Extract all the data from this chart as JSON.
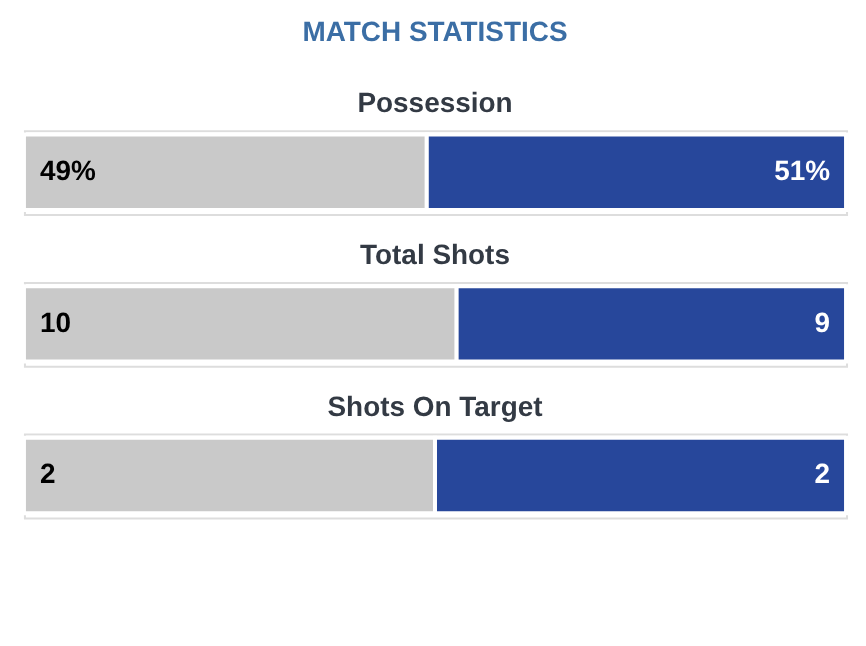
{
  "chart_data": [
    {
      "type": "bar",
      "orientation": "horizontal",
      "stacked": true,
      "title": "MATCH STATISTICS",
      "subtitle": "Possession",
      "categories": [
        null
      ],
      "series": [
        {
          "color": "#c9c9c9",
          "values": [
            49
          ],
          "value_labels": [
            "49%"
          ]
        },
        {
          "color": "#27479b",
          "values": [
            51
          ],
          "value_labels": [
            "51%"
          ]
        }
      ]
    },
    {
      "type": "bar",
      "orientation": "horizontal",
      "stacked": true,
      "title": "Total Shots",
      "categories": [
        null
      ],
      "data_labels": true,
      "series": [
        {
          "color": "#c9c9c9",
          "values": [
            10
          ]
        },
        {
          "color": "#27479b",
          "values": [
            9
          ]
        }
      ]
    },
    {
      "type": "bar",
      "orientation": "horizontal",
      "stacked": true,
      "title": "Shots On Target",
      "categories": [
        null
      ],
      "data_labels": true,
      "series": [
        {
          "color": "#c9c9c9",
          "values": [
            2
          ]
        },
        {
          "color": "#27479b",
          "values": [
            2
          ]
        }
      ]
    }
  ]
}
